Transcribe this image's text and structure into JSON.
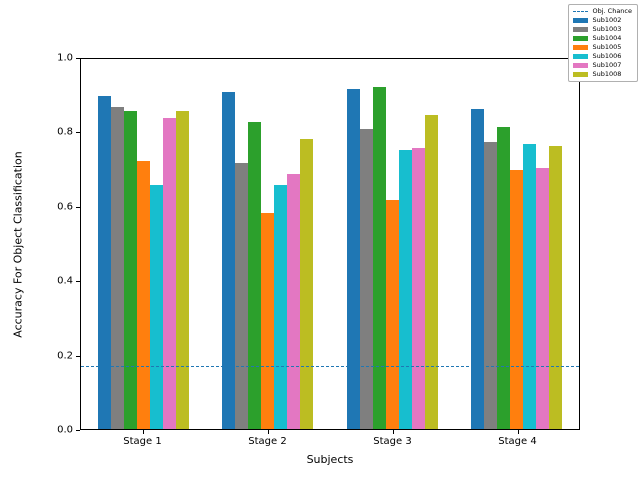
{
  "chart_data": {
    "type": "bar",
    "title": "",
    "xlabel": "Subjects",
    "ylabel": "Accuracy For Object Classification",
    "ylim": [
      0.0,
      1.0
    ],
    "yticks": [
      0.0,
      0.2,
      0.4,
      0.6,
      0.8,
      1.0
    ],
    "categories": [
      "Stage 1",
      "Stage 2",
      "Stage 3",
      "Stage 4"
    ],
    "series": [
      {
        "name": "Sub1002",
        "color": "#1f77b4",
        "values": [
          0.9,
          0.91,
          0.92,
          0.865
        ]
      },
      {
        "name": "Sub1003",
        "color": "#7f7f7f",
        "values": [
          0.87,
          0.72,
          0.81,
          0.775
        ]
      },
      {
        "name": "Sub1004",
        "color": "#2ca02c",
        "values": [
          0.86,
          0.83,
          0.925,
          0.815
        ]
      },
      {
        "name": "Sub1005",
        "color": "#ff7f0e",
        "values": [
          0.725,
          0.585,
          0.62,
          0.7
        ]
      },
      {
        "name": "Sub1006",
        "color": "#17becf",
        "values": [
          0.66,
          0.66,
          0.755,
          0.77
        ]
      },
      {
        "name": "Sub1007",
        "color": "#e377c2",
        "values": [
          0.84,
          0.69,
          0.76,
          0.705
        ]
      },
      {
        "name": "Sub1008",
        "color": "#bcbd22",
        "values": [
          0.86,
          0.785,
          0.85,
          0.765
        ]
      }
    ],
    "reference_line": {
      "label": "Obj. Chance",
      "value": 0.167,
      "color": "#1f77b4",
      "style": "dashed"
    },
    "legend_position": "upper right, outside axes",
    "grid": false
  }
}
